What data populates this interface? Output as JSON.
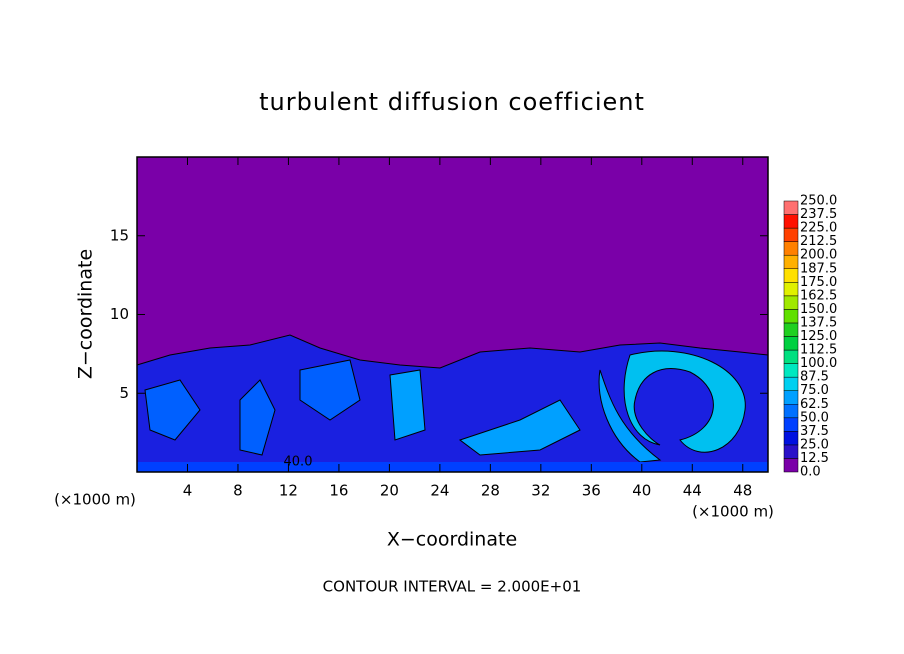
{
  "chart_data": {
    "type": "contour",
    "title": "turbulent diffusion coefficient",
    "x_label": "X−coordinate",
    "y_label": "Z−coordinate",
    "x_unit_left": "(×1000 m)",
    "x_unit_right": "(×1000 m)",
    "annotation": "CONTOUR INTERVAL = 2.000E+01",
    "contour_label": "40.0",
    "xlim": [
      0,
      50
    ],
    "xticks": [
      4,
      8,
      12,
      16,
      20,
      24,
      28,
      32,
      36,
      40,
      44,
      48
    ],
    "ylim": [
      0,
      20
    ],
    "yticks": [
      5,
      10,
      15
    ],
    "colorbar": {
      "levels": [
        {
          "value": 0,
          "label": "0.0"
        },
        {
          "value": 12.5,
          "label": "12.5"
        },
        {
          "value": 25,
          "label": "25.0"
        },
        {
          "value": 37.5,
          "label": "37.5"
        },
        {
          "value": 50,
          "label": "50.0"
        },
        {
          "value": 62.5,
          "label": "62.5"
        },
        {
          "value": 75,
          "label": "75.0"
        },
        {
          "value": 87.5,
          "label": "87.5"
        },
        {
          "value": 100,
          "label": "100.0"
        },
        {
          "value": 112.5,
          "label": "112.5"
        },
        {
          "value": 125,
          "label": "125.0"
        },
        {
          "value": 137.5,
          "label": "137.5"
        },
        {
          "value": 150,
          "label": "150.0"
        },
        {
          "value": 162.5,
          "label": "162.5"
        },
        {
          "value": 175,
          "label": "175.0"
        },
        {
          "value": 187.5,
          "label": "187.5"
        },
        {
          "value": 200,
          "label": "200.0"
        },
        {
          "value": 212.5,
          "label": "212.5"
        },
        {
          "value": 225,
          "label": "225.0"
        },
        {
          "value": 237.5,
          "label": "237.5"
        },
        {
          "value": 250,
          "label": "250.0"
        }
      ],
      "colors": [
        "#7a00a8",
        "#2a10c8",
        "#0010e0",
        "#0040ff",
        "#0070ff",
        "#00a0ff",
        "#00d0f0",
        "#00e8c0",
        "#00e080",
        "#00d040",
        "#20d020",
        "#60e000",
        "#a0e800",
        "#e0f000",
        "#ffe000",
        "#ffb000",
        "#ff8000",
        "#ff4000",
        "#ff1000",
        "#ff7070"
      ]
    }
  }
}
